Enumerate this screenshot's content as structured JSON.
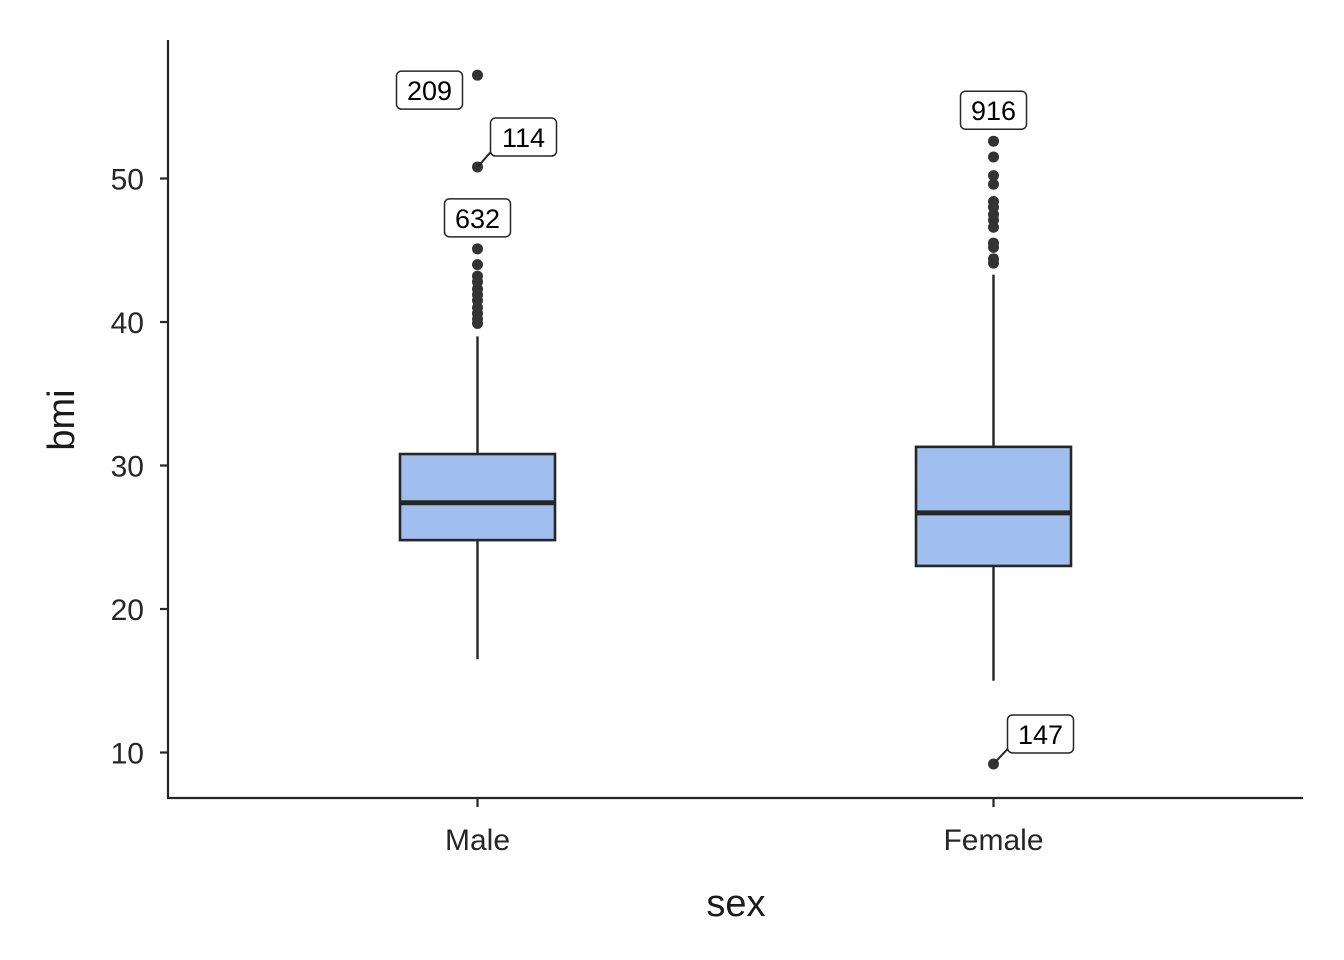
{
  "chart_data": {
    "type": "box",
    "xlabel": "sex",
    "ylabel": "bmi",
    "ylim": [
      7,
      59
    ],
    "yticks": [
      10,
      20,
      30,
      40,
      50
    ],
    "categories": [
      "Male",
      "Female"
    ],
    "box_color": "#A0BEEE",
    "groups": [
      {
        "name": "Male",
        "q1": 24.8,
        "median": 27.4,
        "q3": 30.8,
        "whisker_low": 16.5,
        "whisker_high": 39.0,
        "outliers": [
          39.9,
          40.2,
          40.6,
          41.0,
          41.5,
          41.9,
          42.3,
          42.8,
          43.2,
          44.0,
          45.1,
          50.8,
          57.2
        ],
        "labels": [
          {
            "id": "209",
            "y": 57.2
          },
          {
            "id": "114",
            "y": 50.8
          },
          {
            "id": "632",
            "y": 45.1
          }
        ]
      },
      {
        "name": "Female",
        "q1": 23.0,
        "median": 26.7,
        "q3": 31.3,
        "whisker_low": 15.0,
        "whisker_high": 43.3,
        "outliers": [
          44.1,
          44.4,
          45.2,
          45.5,
          46.6,
          47.1,
          47.5,
          48.0,
          48.4,
          49.6,
          50.2,
          51.5,
          52.6,
          9.2
        ],
        "labels": [
          {
            "id": "916",
            "y": 52.6
          },
          {
            "id": "147",
            "y": 9.2
          }
        ]
      }
    ]
  }
}
